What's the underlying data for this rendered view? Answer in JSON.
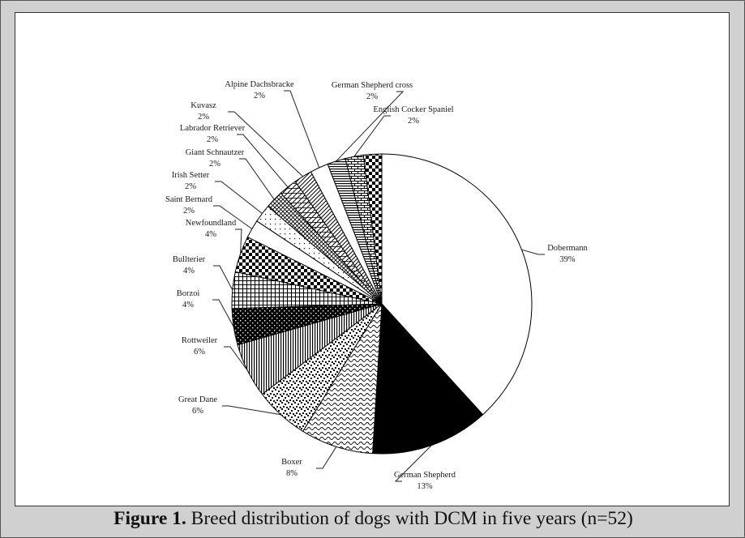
{
  "caption": {
    "prefix": "Figure 1.",
    "text": " Breed distribution of dogs with DCM in five years (n=52)"
  },
  "chart_data": {
    "type": "pie",
    "start": "12 o'clock",
    "direction": "clockwise",
    "slices": [
      {
        "label": "Dobermann",
        "value": 39,
        "pct_label": "39%",
        "pattern": "white"
      },
      {
        "label": "German Shepherd",
        "value": 13,
        "pct_label": "13%",
        "pattern": "black"
      },
      {
        "label": "Boxer",
        "value": 8,
        "pct_label": "8%",
        "pattern": "wave"
      },
      {
        "label": "Great Dane",
        "value": 6,
        "pct_label": "6%",
        "pattern": "confetti"
      },
      {
        "label": "Rottweiler",
        "value": 6,
        "pct_label": "6%",
        "pattern": "vertical"
      },
      {
        "label": "Borzoi",
        "value": 4,
        "pct_label": "4%",
        "pattern": "black-dots"
      },
      {
        "label": "Bullterier",
        "value": 4,
        "pct_label": "4%",
        "pattern": "grid"
      },
      {
        "label": "Newfoundland",
        "value": 4,
        "pct_label": "4%",
        "pattern": "checker"
      },
      {
        "label": "Saint Bernard",
        "value": 2,
        "pct_label": "2%",
        "pattern": "white"
      },
      {
        "label": "Irish Setter",
        "value": 2,
        "pct_label": "2%",
        "pattern": "sparse-dots"
      },
      {
        "label": "Giant Schnautzer",
        "value": 2,
        "pct_label": "2%",
        "pattern": "crosshatch"
      },
      {
        "label": "Labrador Retriever",
        "value": 2,
        "pct_label": "2%",
        "pattern": "diag-grid"
      },
      {
        "label": "Kuvasz",
        "value": 2,
        "pct_label": "2%",
        "pattern": "diagonal"
      },
      {
        "label": "Alpine Dachsbracke",
        "value": 2,
        "pct_label": "2%",
        "pattern": "white"
      },
      {
        "label": "German Shepherd cross",
        "value": 2,
        "pct_label": "2%",
        "pattern": "horizontal"
      },
      {
        "label": "English Cocker Spaniel",
        "value": 2,
        "pct_label": "2%",
        "pattern": "brick"
      },
      {
        "label": "",
        "value": 2,
        "pct_label": "",
        "pattern": "checker"
      }
    ]
  }
}
